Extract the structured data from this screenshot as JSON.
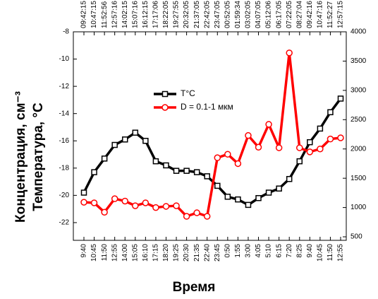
{
  "chart_data": {
    "type": "line",
    "y_label": [
      "Концентрация, см⁻³",
      "Температура, °C"
    ],
    "x_label": "Время",
    "categories": [
      "9:40",
      "10:45",
      "11:50",
      "12:55",
      "14:00",
      "15:05",
      "16:10",
      "17:15",
      "18:20",
      "19:25",
      "20:30",
      "21:35",
      "22:40",
      "23:45",
      "0:50",
      "1:55",
      "3:00",
      "4:05",
      "5:10",
      "6:15",
      "7:20",
      "8:25",
      "9:40",
      "10:45",
      "11:50",
      "12:55"
    ],
    "top_categories": [
      "09:42:15",
      "10:47:15",
      "11:52:56",
      "12:57:16",
      "14:02:15",
      "15:07:16",
      "16:12:15",
      "17:17:06",
      "18:22:05",
      "19:27:55",
      "20:32:05",
      "21:37:05",
      "22:42:05",
      "23:47:05",
      "00:52:05",
      "01:59:34",
      "03:02:05",
      "04:07:05",
      "05:12:06",
      "06:17:05",
      "07:22:05",
      "08:27:04",
      "09:42:16",
      "10:47:16",
      "11:52:27",
      "12:57:15"
    ],
    "ylim": [
      -23.3,
      -8
    ],
    "yticks": [
      -22,
      -20,
      -18,
      -16,
      -14,
      -12,
      -10,
      -8
    ],
    "y2lim": [
      440,
      4000
    ],
    "y2ticks": [
      500,
      1000,
      1500,
      2000,
      2500,
      3000,
      3500,
      4000
    ],
    "series": [
      {
        "name": "T°C",
        "color": "#000000",
        "marker": "square",
        "values": [
          -19.8,
          -18.3,
          -17.3,
          -16.3,
          -15.9,
          -15.4,
          -16.0,
          -17.5,
          -17.8,
          -18.2,
          -18.2,
          -18.3,
          -18.6,
          -19.3,
          -20.1,
          -20.3,
          -20.7,
          -20.2,
          -19.8,
          -19.5,
          -18.8,
          -17.5,
          -16.1,
          -15.1,
          -13.9,
          -12.9
        ]
      },
      {
        "name": "D = 0.1-1 мкм",
        "color": "#ff0000",
        "marker": "circle",
        "axis": "y2",
        "values": [
          1090,
          1080,
          920,
          1150,
          1110,
          1030,
          1080,
          1000,
          1020,
          1030,
          850,
          910,
          850,
          1850,
          1910,
          1750,
          2230,
          2030,
          2420,
          2020,
          3640,
          2020,
          1950,
          2000,
          2170,
          2190
        ]
      }
    ]
  }
}
